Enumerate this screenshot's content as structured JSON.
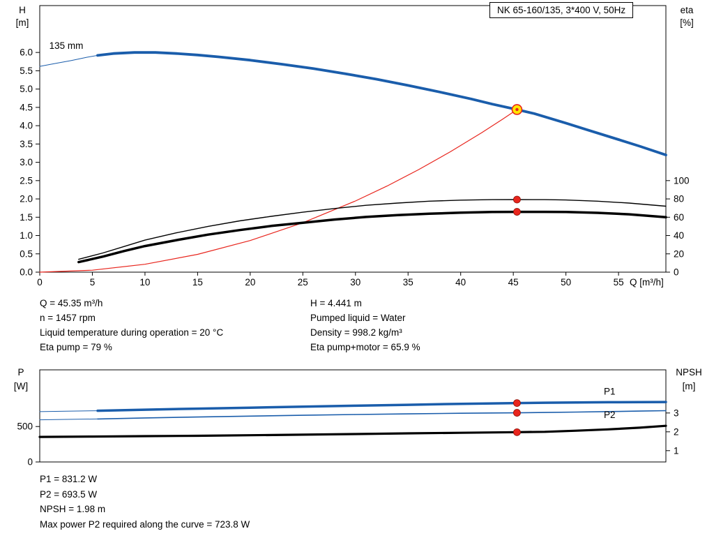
{
  "model_box": {
    "text": "NK 65-160/135, 3*400 V, 50Hz"
  },
  "operating_data": {
    "left": [
      "Q = 45.35 m³/h",
      "n = 1457 rpm",
      "Liquid temperature during operation = 20 °C",
      "Eta pump = 79 %"
    ],
    "right": [
      "H = 4.441 m",
      "Pumped liquid = Water",
      "Density = 998.2 kg/m³",
      "Eta pump+motor = 65.9 %"
    ]
  },
  "results": [
    "P1 = 831.2 W",
    "P2 = 693.5 W",
    "NPSH = 1.98 m",
    "Max power P2 required along the curve = 723.8 W"
  ],
  "colors": {
    "curve_blue": "#1a5dab",
    "marker_red": "#e8251d",
    "duty_yellow": "#ffe600",
    "black": "#000000"
  },
  "chart_data": [
    {
      "name": "hq-chart",
      "type": "line",
      "title": "NK 65-160/135 pump curve (head and efficiency vs flow)",
      "x": {
        "label": "Q [m³/h]",
        "range": [
          0,
          59.5
        ],
        "ticks": [
          {
            "v": 0,
            "label": "0"
          },
          {
            "v": 5,
            "label": "5"
          },
          {
            "v": 10,
            "label": "10"
          },
          {
            "v": 15,
            "label": "15"
          },
          {
            "v": 20,
            "label": "20"
          },
          {
            "v": 25,
            "label": "25"
          },
          {
            "v": 30,
            "label": "30"
          },
          {
            "v": 35,
            "label": "35"
          },
          {
            "v": 40,
            "label": "40"
          },
          {
            "v": 45,
            "label": "45"
          },
          {
            "v": 50,
            "label": "50"
          },
          {
            "v": 55,
            "label": "55"
          }
        ]
      },
      "y_left": {
        "title_lines": [
          "H",
          "[m]"
        ],
        "range": [
          0,
          7.28
        ],
        "ticks": [
          {
            "v": 0,
            "label": "0.0"
          },
          {
            "v": 0.5,
            "label": "0.5"
          },
          {
            "v": 1,
            "label": "1.0"
          },
          {
            "v": 1.5,
            "label": "1.5"
          },
          {
            "v": 2,
            "label": "2.0"
          },
          {
            "v": 2.5,
            "label": "2.5"
          },
          {
            "v": 3,
            "label": "3.0"
          },
          {
            "v": 3.5,
            "label": "3.5"
          },
          {
            "v": 4,
            "label": "4.0"
          },
          {
            "v": 4.5,
            "label": "4.5"
          },
          {
            "v": 5,
            "label": "5.0"
          },
          {
            "v": 5.5,
            "label": "5.5"
          },
          {
            "v": 6,
            "label": "6.0"
          }
        ]
      },
      "y_right": {
        "title_lines": [
          "eta",
          "[%]"
        ],
        "range": [
          0,
          291.2
        ],
        "ticks": [
          {
            "v": 0,
            "label": "0"
          },
          {
            "v": 20,
            "label": "20"
          },
          {
            "v": 40,
            "label": "40"
          },
          {
            "v": 60,
            "label": "60"
          },
          {
            "v": 80,
            "label": "80"
          },
          {
            "v": 100,
            "label": "100"
          }
        ]
      },
      "series": [
        {
          "name": "head-curve-leadin",
          "color": "#1a5dab",
          "width": 1,
          "axis": "left",
          "points": [
            [
              0,
              5.62
            ],
            [
              1.5,
              5.7
            ],
            [
              3,
              5.78
            ],
            [
              4.5,
              5.87
            ],
            [
              5.5,
              5.92
            ]
          ]
        },
        {
          "name": "head-curve",
          "color": "#1a5dab",
          "width": 3.8,
          "axis": "left",
          "points": [
            [
              5.5,
              5.92
            ],
            [
              7,
              5.97
            ],
            [
              9,
              6.0
            ],
            [
              11,
              6.0
            ],
            [
              13,
              5.97
            ],
            [
              15,
              5.93
            ],
            [
              17,
              5.88
            ],
            [
              20,
              5.79
            ],
            [
              23,
              5.68
            ],
            [
              26,
              5.56
            ],
            [
              29,
              5.42
            ],
            [
              32,
              5.27
            ],
            [
              35,
              5.1
            ],
            [
              38,
              4.92
            ],
            [
              41,
              4.73
            ],
            [
              43,
              4.59
            ],
            [
              45.35,
              4.441
            ],
            [
              47,
              4.33
            ],
            [
              50,
              4.07
            ],
            [
              52,
              3.89
            ],
            [
              55,
              3.62
            ],
            [
              57,
              3.44
            ],
            [
              59.5,
              3.2
            ]
          ]
        },
        {
          "name": "system-curve",
          "color": "#e8251d",
          "width": 1.2,
          "axis": "left",
          "points": [
            [
              0,
              0
            ],
            [
              5,
              0.054
            ],
            [
              10,
              0.216
            ],
            [
              15,
              0.486
            ],
            [
              20,
              0.864
            ],
            [
              25,
              1.35
            ],
            [
              30,
              1.944
            ],
            [
              33,
              2.352
            ],
            [
              36,
              2.799
            ],
            [
              39,
              3.285
            ],
            [
              42,
              3.81
            ],
            [
              44,
              4.181
            ],
            [
              45.35,
              4.441
            ]
          ]
        },
        {
          "name": "eta-pump-curve",
          "color": "#000000",
          "width": 1.4,
          "axis": "right",
          "points": [
            [
              3.7,
              14
            ],
            [
              6,
              21
            ],
            [
              8,
              28
            ],
            [
              10,
              35
            ],
            [
              13,
              43
            ],
            [
              16,
              50
            ],
            [
              19,
              56
            ],
            [
              22,
              61
            ],
            [
              25,
              65.5
            ],
            [
              28,
              69.5
            ],
            [
              31,
              73
            ],
            [
              34,
              75.5
            ],
            [
              37,
              77.5
            ],
            [
              40,
              78.7
            ],
            [
              43,
              79.2
            ],
            [
              45.35,
              79.3
            ],
            [
              48,
              79.2
            ],
            [
              50,
              78.8
            ],
            [
              53,
              77.5
            ],
            [
              56,
              75.5
            ],
            [
              59.5,
              72
            ]
          ]
        },
        {
          "name": "eta-pump-motor-curve",
          "color": "#000000",
          "width": 3.5,
          "axis": "right",
          "points": [
            [
              3.7,
              11
            ],
            [
              6,
              17
            ],
            [
              8,
              23
            ],
            [
              10,
              28.5
            ],
            [
              13,
              35
            ],
            [
              16,
              41
            ],
            [
              19,
              46
            ],
            [
              22,
              50.5
            ],
            [
              25,
              54
            ],
            [
              28,
              57.5
            ],
            [
              31,
              60.3
            ],
            [
              34,
              62.3
            ],
            [
              37,
              63.8
            ],
            [
              40,
              65
            ],
            [
              43,
              65.7
            ],
            [
              45.35,
              65.9
            ],
            [
              48,
              65.9
            ],
            [
              50,
              65.7
            ],
            [
              53,
              64.8
            ],
            [
              56,
              63.2
            ],
            [
              59.5,
              60
            ]
          ]
        }
      ],
      "markers": [
        {
          "name": "eta-pump-duty-dot",
          "x": 45.35,
          "y": 79.3,
          "axis": "right",
          "r": 5,
          "fill": "#e8251d",
          "stroke": "#8c1007",
          "stroke_width": 0.8
        },
        {
          "name": "eta-pump-motor-duty-dot",
          "x": 45.35,
          "y": 65.9,
          "axis": "right",
          "r": 5,
          "fill": "#e8251d",
          "stroke": "#8c1007",
          "stroke_width": 0.8
        },
        {
          "name": "duty-point-ring",
          "x": 45.35,
          "y": 4.441,
          "axis": "left",
          "r": 7,
          "fill": "#ffe600",
          "stroke": "#e8251d",
          "stroke_width": 1.6
        },
        {
          "name": "duty-point-center",
          "x": 45.35,
          "y": 4.441,
          "axis": "left",
          "r": 2.2,
          "fill": "#e8251d"
        }
      ],
      "annotations": [
        {
          "name": "impeller-size-label",
          "text": "135 mm",
          "x": 0.9,
          "y": 6.1,
          "axis": "left",
          "color": "#000000",
          "anchor": "start"
        }
      ]
    },
    {
      "name": "pq-chart",
      "type": "line",
      "title": "Power and NPSH vs flow",
      "x": {
        "label": "",
        "range": [
          0,
          59.5
        ],
        "ticks": []
      },
      "y_left": {
        "title_lines": [
          "P",
          "[W]"
        ],
        "range": [
          0,
          1300
        ],
        "ticks": [
          {
            "v": 0,
            "label": "0"
          },
          {
            "v": 500,
            "label": "500"
          }
        ]
      },
      "y_right": {
        "title_lines": [
          "NPSH",
          "[m]"
        ],
        "range": [
          0.4,
          5.29
        ],
        "ticks": [
          {
            "v": 1,
            "label": "1"
          },
          {
            "v": 2,
            "label": "2"
          },
          {
            "v": 3,
            "label": "3"
          }
        ]
      },
      "series": [
        {
          "name": "p1-curve-leadin",
          "color": "#1a5dab",
          "width": 1,
          "axis": "left",
          "points": [
            [
              0,
              710
            ],
            [
              2.5,
              716
            ],
            [
              5.5,
              723
            ]
          ]
        },
        {
          "name": "p1-curve",
          "color": "#1a5dab",
          "width": 3.5,
          "axis": "left",
          "points": [
            [
              5.5,
              723
            ],
            [
              10,
              738
            ],
            [
              15,
              752
            ],
            [
              20,
              766
            ],
            [
              25,
              780
            ],
            [
              30,
              794
            ],
            [
              35,
              807
            ],
            [
              40,
              820
            ],
            [
              43,
              826
            ],
            [
              45.35,
              831.2
            ],
            [
              48,
              836
            ],
            [
              51,
              840
            ],
            [
              54,
              843
            ],
            [
              57,
              845
            ],
            [
              59.5,
              846
            ]
          ]
        },
        {
          "name": "p2-curve-leadin",
          "color": "#1a5dab",
          "width": 1,
          "axis": "left",
          "points": [
            [
              0,
              595
            ],
            [
              2.5,
              601
            ],
            [
              5.5,
              607
            ]
          ]
        },
        {
          "name": "p2-curve",
          "color": "#1a5dab",
          "width": 1.6,
          "axis": "left",
          "points": [
            [
              5.5,
              607
            ],
            [
              10,
              621
            ],
            [
              15,
              634
            ],
            [
              20,
              647
            ],
            [
              25,
              659
            ],
            [
              30,
              670
            ],
            [
              35,
              679
            ],
            [
              40,
              687
            ],
            [
              43,
              691
            ],
            [
              45.35,
              693.5
            ],
            [
              48,
              698
            ],
            [
              51,
              704
            ],
            [
              54,
              711
            ],
            [
              57,
              718
            ],
            [
              59.5,
              723.8
            ]
          ]
        },
        {
          "name": "npsh-curve",
          "color": "#000000",
          "width": 3.2,
          "axis": "right",
          "points": [
            [
              0,
              1.73
            ],
            [
              5,
              1.75
            ],
            [
              10,
              1.77
            ],
            [
              15,
              1.79
            ],
            [
              20,
              1.82
            ],
            [
              25,
              1.85
            ],
            [
              30,
              1.88
            ],
            [
              35,
              1.92
            ],
            [
              40,
              1.95
            ],
            [
              45.35,
              1.98
            ],
            [
              48,
              2.0
            ],
            [
              51,
              2.06
            ],
            [
              54,
              2.13
            ],
            [
              57,
              2.22
            ],
            [
              59.5,
              2.32
            ]
          ]
        }
      ],
      "markers": [
        {
          "name": "p1-duty-dot",
          "x": 45.35,
          "y": 831.2,
          "axis": "left",
          "r": 5,
          "fill": "#e8251d",
          "stroke": "#8c1007",
          "stroke_width": 0.8
        },
        {
          "name": "p2-duty-dot",
          "x": 45.35,
          "y": 693.5,
          "axis": "left",
          "r": 5,
          "fill": "#e8251d",
          "stroke": "#8c1007",
          "stroke_width": 0.8
        },
        {
          "name": "npsh-duty-dot",
          "x": 45.35,
          "y": 1.98,
          "axis": "right",
          "r": 5,
          "fill": "#e8251d",
          "stroke": "#8c1007",
          "stroke_width": 0.8
        }
      ],
      "annotations": [
        {
          "name": "p1-curve-label",
          "text": "P1",
          "x": 53.6,
          "y": 950,
          "axis": "left",
          "color": "#1a5dab",
          "anchor": "start"
        },
        {
          "name": "p2-curve-label",
          "text": "P2",
          "x": 53.6,
          "y": 620,
          "axis": "left",
          "color": "#1a5dab",
          "anchor": "start"
        }
      ]
    }
  ]
}
